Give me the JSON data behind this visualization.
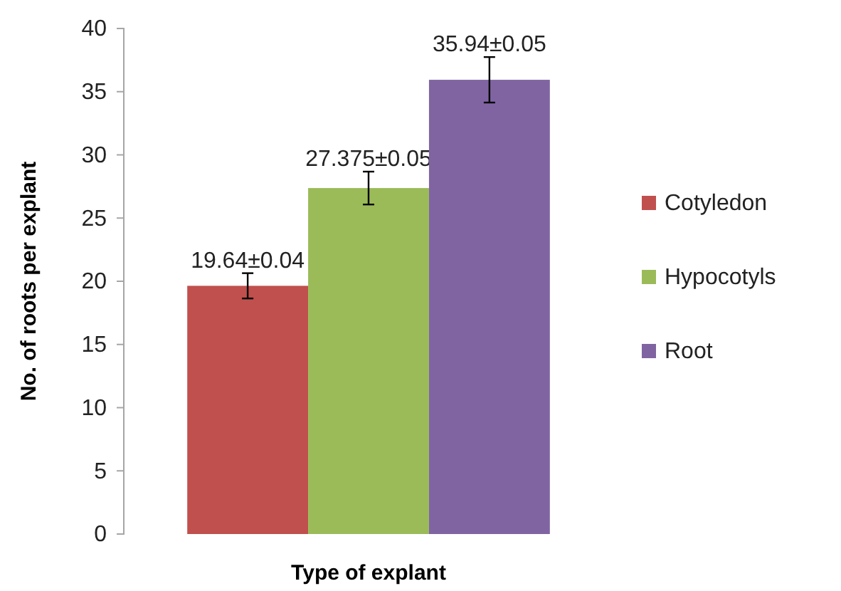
{
  "chart_data": {
    "type": "bar",
    "xlabel": "Type of explant",
    "ylabel": "No. of roots per explant",
    "categories": [
      null
    ],
    "series": [
      {
        "name": "Cotyledon",
        "color": "#c0504d",
        "values": [
          19.64
        ],
        "errors": [
          1.0
        ],
        "value_labels": [
          "19.64±0.04"
        ]
      },
      {
        "name": "Hypocotyls",
        "color": "#9bbb59",
        "values": [
          27.375
        ],
        "errors": [
          1.3
        ],
        "value_labels": [
          "27.375±0.05"
        ]
      },
      {
        "name": "Root",
        "color": "#8064a2",
        "values": [
          35.94
        ],
        "errors": [
          1.8
        ],
        "value_labels": [
          "35.94±0.05"
        ]
      }
    ],
    "ylim": [
      0,
      40
    ],
    "yticks": [
      0,
      5,
      10,
      15,
      20,
      25,
      30,
      35,
      40
    ],
    "legend": "right"
  }
}
